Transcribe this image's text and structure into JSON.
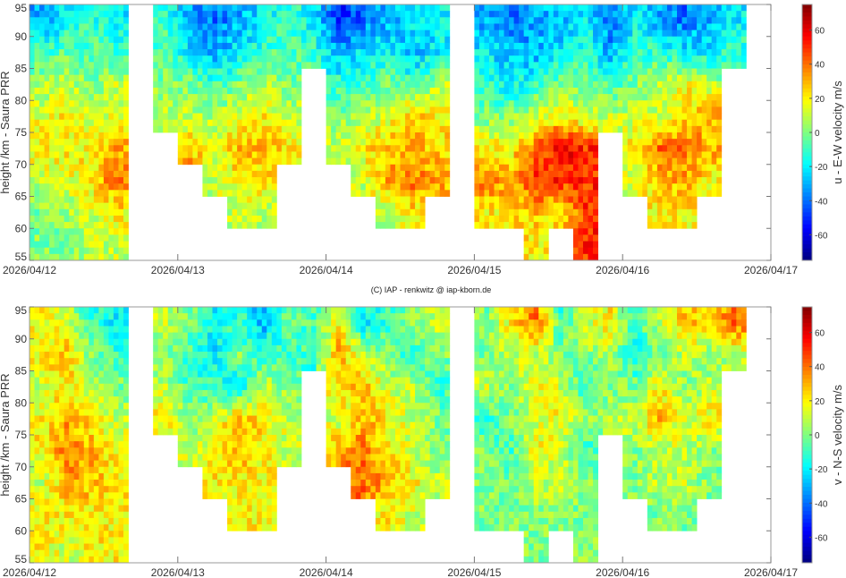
{
  "credit": "(C) IAP - renkwitz @ iap-kborn.de",
  "chart_data": [
    {
      "type": "heatmap",
      "title": "",
      "xlabel": "",
      "ylabel": "height /km - Saura PRR",
      "colorbar_label": "u - E-W velocity m/s",
      "colormap": "jet",
      "clim": [
        -75,
        75
      ],
      "colorbar_ticks": [
        60,
        40,
        20,
        0,
        -20,
        -40,
        -60
      ],
      "xlim_days": [
        0,
        5
      ],
      "x_tick_labels": [
        "2026/04/12",
        "2026/04/13",
        "2026/04/14",
        "2026/04/15",
        "2026/04/16",
        "2026/04/17"
      ],
      "ylim": [
        55,
        95
      ],
      "y_ticks": [
        95,
        90,
        85,
        80,
        75,
        70,
        65,
        60,
        55
      ],
      "time_bin_hours": 4,
      "heights_km": [
        92.5,
        87.5,
        82.5,
        77.5,
        72.5,
        67.5,
        62.5,
        57.5
      ],
      "values": [
        [
          -30,
          -20,
          -10,
          -20,
          null,
          -10,
          -30,
          -40,
          -30,
          -20,
          -10,
          -20,
          -50,
          -40,
          -30,
          -20,
          -20,
          null,
          -30,
          -40,
          -30,
          -30,
          -20,
          -40,
          -20,
          -30,
          -40,
          -30,
          -20,
          null
        ],
        [
          -10,
          -5,
          -5,
          -10,
          null,
          -5,
          -20,
          -30,
          -20,
          -10,
          -5,
          -10,
          -30,
          -20,
          -20,
          -30,
          -20,
          null,
          -20,
          -30,
          -30,
          -20,
          -10,
          -30,
          -10,
          -10,
          -20,
          -20,
          -10,
          null
        ],
        [
          5,
          10,
          0,
          10,
          null,
          0,
          0,
          -10,
          0,
          10,
          0,
          null,
          -10,
          -10,
          0,
          -10,
          10,
          null,
          -10,
          -20,
          -10,
          0,
          0,
          -10,
          0,
          10,
          20,
          10,
          null,
          null
        ],
        [
          15,
          20,
          10,
          15,
          null,
          10,
          10,
          5,
          15,
          20,
          10,
          null,
          0,
          10,
          10,
          30,
          20,
          null,
          0,
          0,
          10,
          20,
          10,
          10,
          10,
          10,
          20,
          30,
          null,
          null
        ],
        [
          20,
          20,
          20,
          30,
          null,
          null,
          30,
          15,
          30,
          30,
          20,
          null,
          10,
          20,
          30,
          30,
          25,
          null,
          20,
          20,
          40,
          60,
          50,
          null,
          20,
          40,
          40,
          30,
          null,
          null
        ],
        [
          10,
          15,
          20,
          40,
          null,
          null,
          null,
          10,
          20,
          20,
          null,
          null,
          null,
          10,
          30,
          40,
          30,
          null,
          40,
          30,
          50,
          50,
          50,
          null,
          10,
          30,
          30,
          20,
          null,
          null
        ],
        [
          0,
          5,
          10,
          20,
          null,
          null,
          null,
          null,
          10,
          10,
          null,
          null,
          null,
          null,
          10,
          20,
          null,
          null,
          20,
          20,
          30,
          20,
          50,
          null,
          null,
          20,
          20,
          null,
          null,
          null
        ],
        [
          0,
          0,
          10,
          10,
          null,
          null,
          null,
          null,
          null,
          null,
          null,
          null,
          null,
          null,
          null,
          null,
          null,
          null,
          null,
          null,
          20,
          null,
          50,
          null,
          null,
          null,
          null,
          null,
          null,
          null
        ]
      ]
    },
    {
      "type": "heatmap",
      "title": "",
      "xlabel": "",
      "ylabel": "height /km - Saura PRR",
      "colorbar_label": "v - N-S velocity m/s",
      "colormap": "jet",
      "clim": [
        -75,
        75
      ],
      "colorbar_ticks": [
        60,
        40,
        20,
        0,
        -20,
        -40,
        -60
      ],
      "xlim_days": [
        0,
        5
      ],
      "x_tick_labels": [
        "2026/04/12",
        "2026/04/13",
        "2026/04/14",
        "2026/04/15",
        "2026/04/16",
        "2026/04/17"
      ],
      "ylim": [
        55,
        95
      ],
      "y_ticks": [
        95,
        90,
        85,
        80,
        75,
        70,
        65,
        60,
        55
      ],
      "time_bin_hours": 4,
      "heights_km": [
        92.5,
        87.5,
        82.5,
        77.5,
        72.5,
        67.5,
        62.5,
        57.5
      ],
      "values": [
        [
          20,
          10,
          -10,
          -20,
          null,
          10,
          0,
          -20,
          -10,
          -30,
          0,
          -10,
          20,
          -20,
          -10,
          0,
          10,
          null,
          0,
          20,
          40,
          -10,
          10,
          20,
          -10,
          10,
          30,
          20,
          40,
          null
        ],
        [
          20,
          30,
          0,
          -10,
          null,
          0,
          -10,
          -20,
          0,
          -10,
          -10,
          -10,
          30,
          10,
          0,
          -10,
          0,
          null,
          0,
          10,
          10,
          0,
          0,
          10,
          -20,
          0,
          10,
          0,
          10,
          null
        ],
        [
          10,
          20,
          10,
          0,
          null,
          10,
          -10,
          -10,
          -20,
          10,
          0,
          null,
          20,
          30,
          10,
          10,
          -10,
          null,
          10,
          0,
          20,
          10,
          -10,
          0,
          0,
          20,
          0,
          10,
          null,
          null
        ],
        [
          20,
          30,
          20,
          10,
          null,
          20,
          0,
          10,
          30,
          20,
          10,
          null,
          10,
          30,
          20,
          10,
          0,
          null,
          -10,
          0,
          10,
          20,
          0,
          10,
          10,
          30,
          10,
          20,
          null,
          null
        ],
        [
          20,
          40,
          30,
          20,
          null,
          null,
          10,
          20,
          30,
          20,
          10,
          null,
          30,
          40,
          20,
          10,
          0,
          null,
          0,
          -10,
          20,
          10,
          -10,
          null,
          0,
          10,
          10,
          0,
          null,
          null
        ],
        [
          10,
          30,
          30,
          20,
          null,
          null,
          null,
          20,
          20,
          20,
          null,
          null,
          null,
          40,
          30,
          20,
          10,
          null,
          0,
          0,
          10,
          10,
          0,
          null,
          0,
          10,
          10,
          0,
          null,
          null
        ],
        [
          20,
          20,
          20,
          20,
          null,
          null,
          null,
          null,
          20,
          20,
          null,
          null,
          null,
          null,
          20,
          10,
          null,
          null,
          0,
          0,
          0,
          0,
          0,
          null,
          null,
          0,
          0,
          null,
          null,
          null
        ],
        [
          20,
          10,
          20,
          20,
          null,
          null,
          null,
          null,
          null,
          null,
          null,
          null,
          null,
          null,
          null,
          null,
          null,
          null,
          null,
          null,
          0,
          null,
          0,
          null,
          null,
          null,
          null,
          null,
          null,
          null
        ]
      ]
    }
  ]
}
